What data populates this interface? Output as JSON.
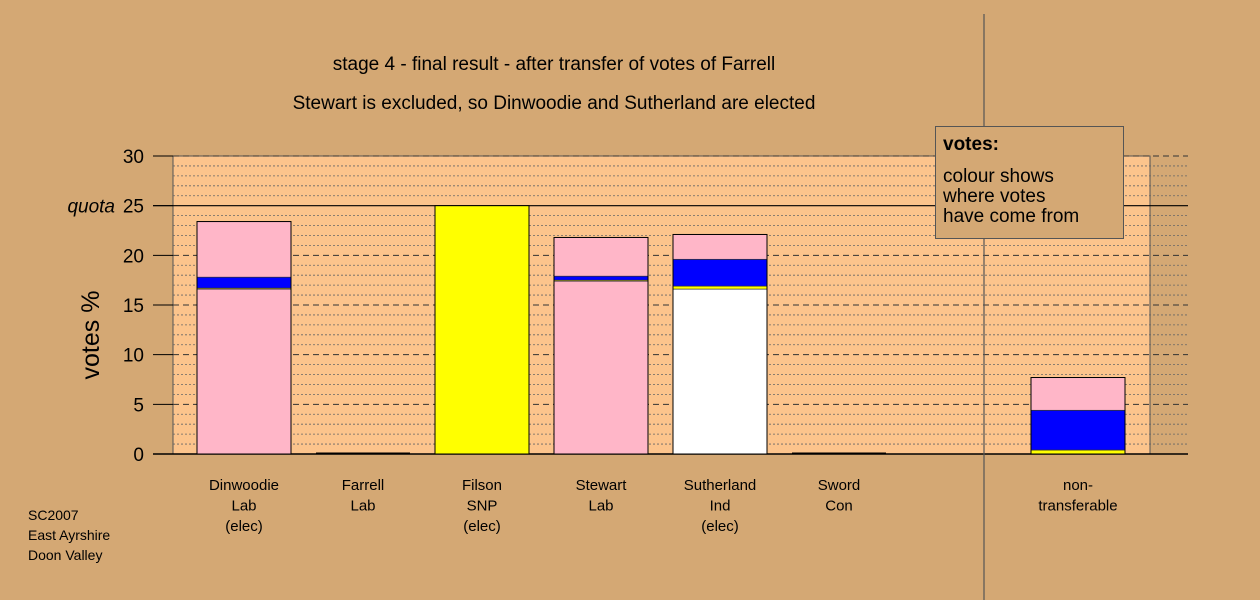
{
  "chart_data": {
    "type": "bar",
    "stacked": true,
    "title": "stage 4 - final result - after transfer of votes of Farrell",
    "subtitle": "Stewart is excluded, so Dinwoodie and Sutherland are elected",
    "ylabel": "votes %",
    "ylim": [
      0,
      30
    ],
    "yticks": [
      0,
      5,
      10,
      15,
      20,
      25,
      30
    ],
    "quota": {
      "label": "quota",
      "value": 25
    },
    "grid": "minor dotted every 1, dashed every 5",
    "legend": {
      "title": "votes:",
      "lines": [
        "colour shows",
        "where votes",
        "have come from"
      ],
      "position": "top-right"
    },
    "categories": [
      {
        "lines": [
          "Dinwoodie",
          "Lab",
          "(elec)"
        ],
        "segments": [
          {
            "color": "#ffb6c8",
            "value": 16.6
          },
          {
            "color": "#ffff00",
            "value": 0.1
          },
          {
            "color": "#0000ff",
            "value": 1.1
          },
          {
            "color": "#ffb6c8",
            "value": 5.6
          }
        ]
      },
      {
        "lines": [
          "Farrell",
          "Lab"
        ],
        "segments": []
      },
      {
        "lines": [
          "Filson",
          "SNP",
          "(elec)"
        ],
        "segments": [
          {
            "color": "#ffff00",
            "value": 25.0
          }
        ]
      },
      {
        "lines": [
          "Stewart",
          "Lab"
        ],
        "segments": [
          {
            "color": "#ffb6c8",
            "value": 17.4
          },
          {
            "color": "#ffff00",
            "value": 0.1
          },
          {
            "color": "#0000ff",
            "value": 0.4
          },
          {
            "color": "#ffb6c8",
            "value": 3.9
          }
        ]
      },
      {
        "lines": [
          "Sutherland",
          "Ind",
          "(elec)"
        ],
        "segments": [
          {
            "color": "#ffffff",
            "value": 16.6
          },
          {
            "color": "#ffff00",
            "value": 0.3
          },
          {
            "color": "#0000ff",
            "value": 2.7
          },
          {
            "color": "#ffb6c8",
            "value": 2.5
          }
        ]
      },
      {
        "lines": [
          "Sword",
          "Con"
        ],
        "segments": []
      },
      {
        "lines": [
          "non-",
          "transferable"
        ],
        "segments": [
          {
            "color": "#ffff00",
            "value": 0.4
          },
          {
            "color": "#0000ff",
            "value": 4.0
          },
          {
            "color": "#ffb6c8",
            "value": 3.3
          }
        ]
      }
    ],
    "colors": {
      "background": "#d4a874",
      "plot_area": "#fcc48c",
      "pink": "#ffb6c8",
      "blue": "#0000ff",
      "yellow": "#ffff00",
      "white": "#ffffff"
    }
  },
  "footnote": [
    "SC2007",
    "East Ayrshire",
    "Doon Valley"
  ]
}
